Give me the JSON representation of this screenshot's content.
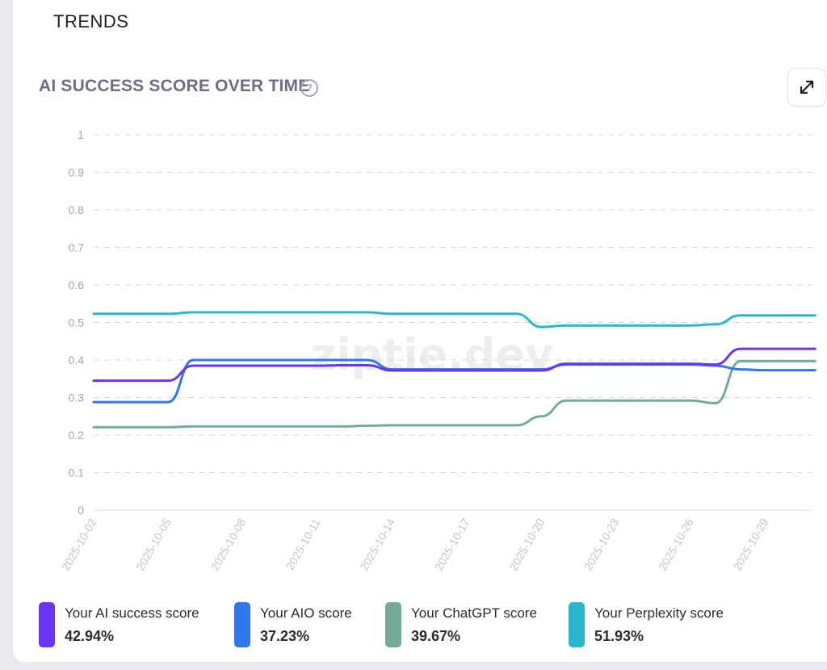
{
  "section": {
    "title": "TRENDS"
  },
  "header": {
    "chart_title": "AI SUCCESS SCORE OVER TIME",
    "help_icon": "question-circle-icon",
    "expand_icon": "expand-arrows-icon"
  },
  "watermark": "ziptie.dev",
  "chart_data": {
    "type": "line",
    "title": "AI SUCCESS SCORE OVER TIME",
    "xlabel": "",
    "ylabel": "",
    "ylim": [
      0,
      1
    ],
    "yticks": [
      "0",
      "0.1",
      "0.2",
      "0.3",
      "0.4",
      "0.5",
      "0.6",
      "0.7",
      "0.8",
      "0.9",
      "1"
    ],
    "xticks": [
      "2025-10-02",
      "2025-10-05",
      "2025-10-08",
      "2025-10-11",
      "2025-10-14",
      "2025-10-17",
      "2025-10-20",
      "2025-10-23",
      "2025-10-26",
      "2025-10-29"
    ],
    "x": [
      "2025-10-02",
      "2025-10-03",
      "2025-10-04",
      "2025-10-05",
      "2025-10-06",
      "2025-10-07",
      "2025-10-08",
      "2025-10-09",
      "2025-10-10",
      "2025-10-11",
      "2025-10-12",
      "2025-10-13",
      "2025-10-14",
      "2025-10-15",
      "2025-10-16",
      "2025-10-17",
      "2025-10-18",
      "2025-10-19",
      "2025-10-20",
      "2025-10-21",
      "2025-10-22",
      "2025-10-23",
      "2025-10-24",
      "2025-10-25",
      "2025-10-26",
      "2025-10-27",
      "2025-10-28",
      "2025-10-29",
      "2025-10-30",
      "2025-10-31"
    ],
    "grid": true,
    "series": [
      {
        "name": "Your AI success score",
        "color": "#6a35f0",
        "values": [
          0.345,
          0.345,
          0.345,
          0.345,
          0.385,
          0.385,
          0.385,
          0.385,
          0.385,
          0.385,
          0.386,
          0.386,
          0.372,
          0.372,
          0.372,
          0.372,
          0.372,
          0.372,
          0.372,
          0.39,
          0.39,
          0.39,
          0.39,
          0.39,
          0.39,
          0.388,
          0.43,
          0.43,
          0.43,
          0.43
        ]
      },
      {
        "name": "Your AIO score",
        "color": "#2f77ea",
        "values": [
          0.288,
          0.288,
          0.288,
          0.288,
          0.4,
          0.4,
          0.4,
          0.4,
          0.4,
          0.4,
          0.4,
          0.4,
          0.375,
          0.375,
          0.375,
          0.375,
          0.375,
          0.375,
          0.375,
          0.388,
          0.388,
          0.388,
          0.388,
          0.388,
          0.388,
          0.385,
          0.375,
          0.373,
          0.373,
          0.373
        ]
      },
      {
        "name": "Your ChatGPT score",
        "color": "#73aa99",
        "values": [
          0.221,
          0.221,
          0.221,
          0.221,
          0.223,
          0.223,
          0.223,
          0.223,
          0.223,
          0.223,
          0.223,
          0.225,
          0.226,
          0.226,
          0.226,
          0.226,
          0.226,
          0.226,
          0.25,
          0.292,
          0.292,
          0.292,
          0.292,
          0.292,
          0.292,
          0.285,
          0.397,
          0.397,
          0.397,
          0.397
        ]
      },
      {
        "name": "Your Perplexity score",
        "color": "#2ab7cc",
        "values": [
          0.523,
          0.523,
          0.523,
          0.523,
          0.527,
          0.527,
          0.527,
          0.527,
          0.527,
          0.527,
          0.527,
          0.527,
          0.523,
          0.523,
          0.523,
          0.523,
          0.523,
          0.523,
          0.488,
          0.492,
          0.492,
          0.492,
          0.492,
          0.492,
          0.492,
          0.495,
          0.519,
          0.519,
          0.519,
          0.519
        ]
      }
    ]
  },
  "legend": [
    {
      "label": "Your AI success score",
      "value": "42.94%",
      "color": "#6a35f0"
    },
    {
      "label": "Your AIO score",
      "value": "37.23%",
      "color": "#2f77ea"
    },
    {
      "label": "Your ChatGPT score",
      "value": "39.67%",
      "color": "#73aa99"
    },
    {
      "label": "Your Perplexity score",
      "value": "51.93%",
      "color": "#2ab7cc"
    }
  ]
}
